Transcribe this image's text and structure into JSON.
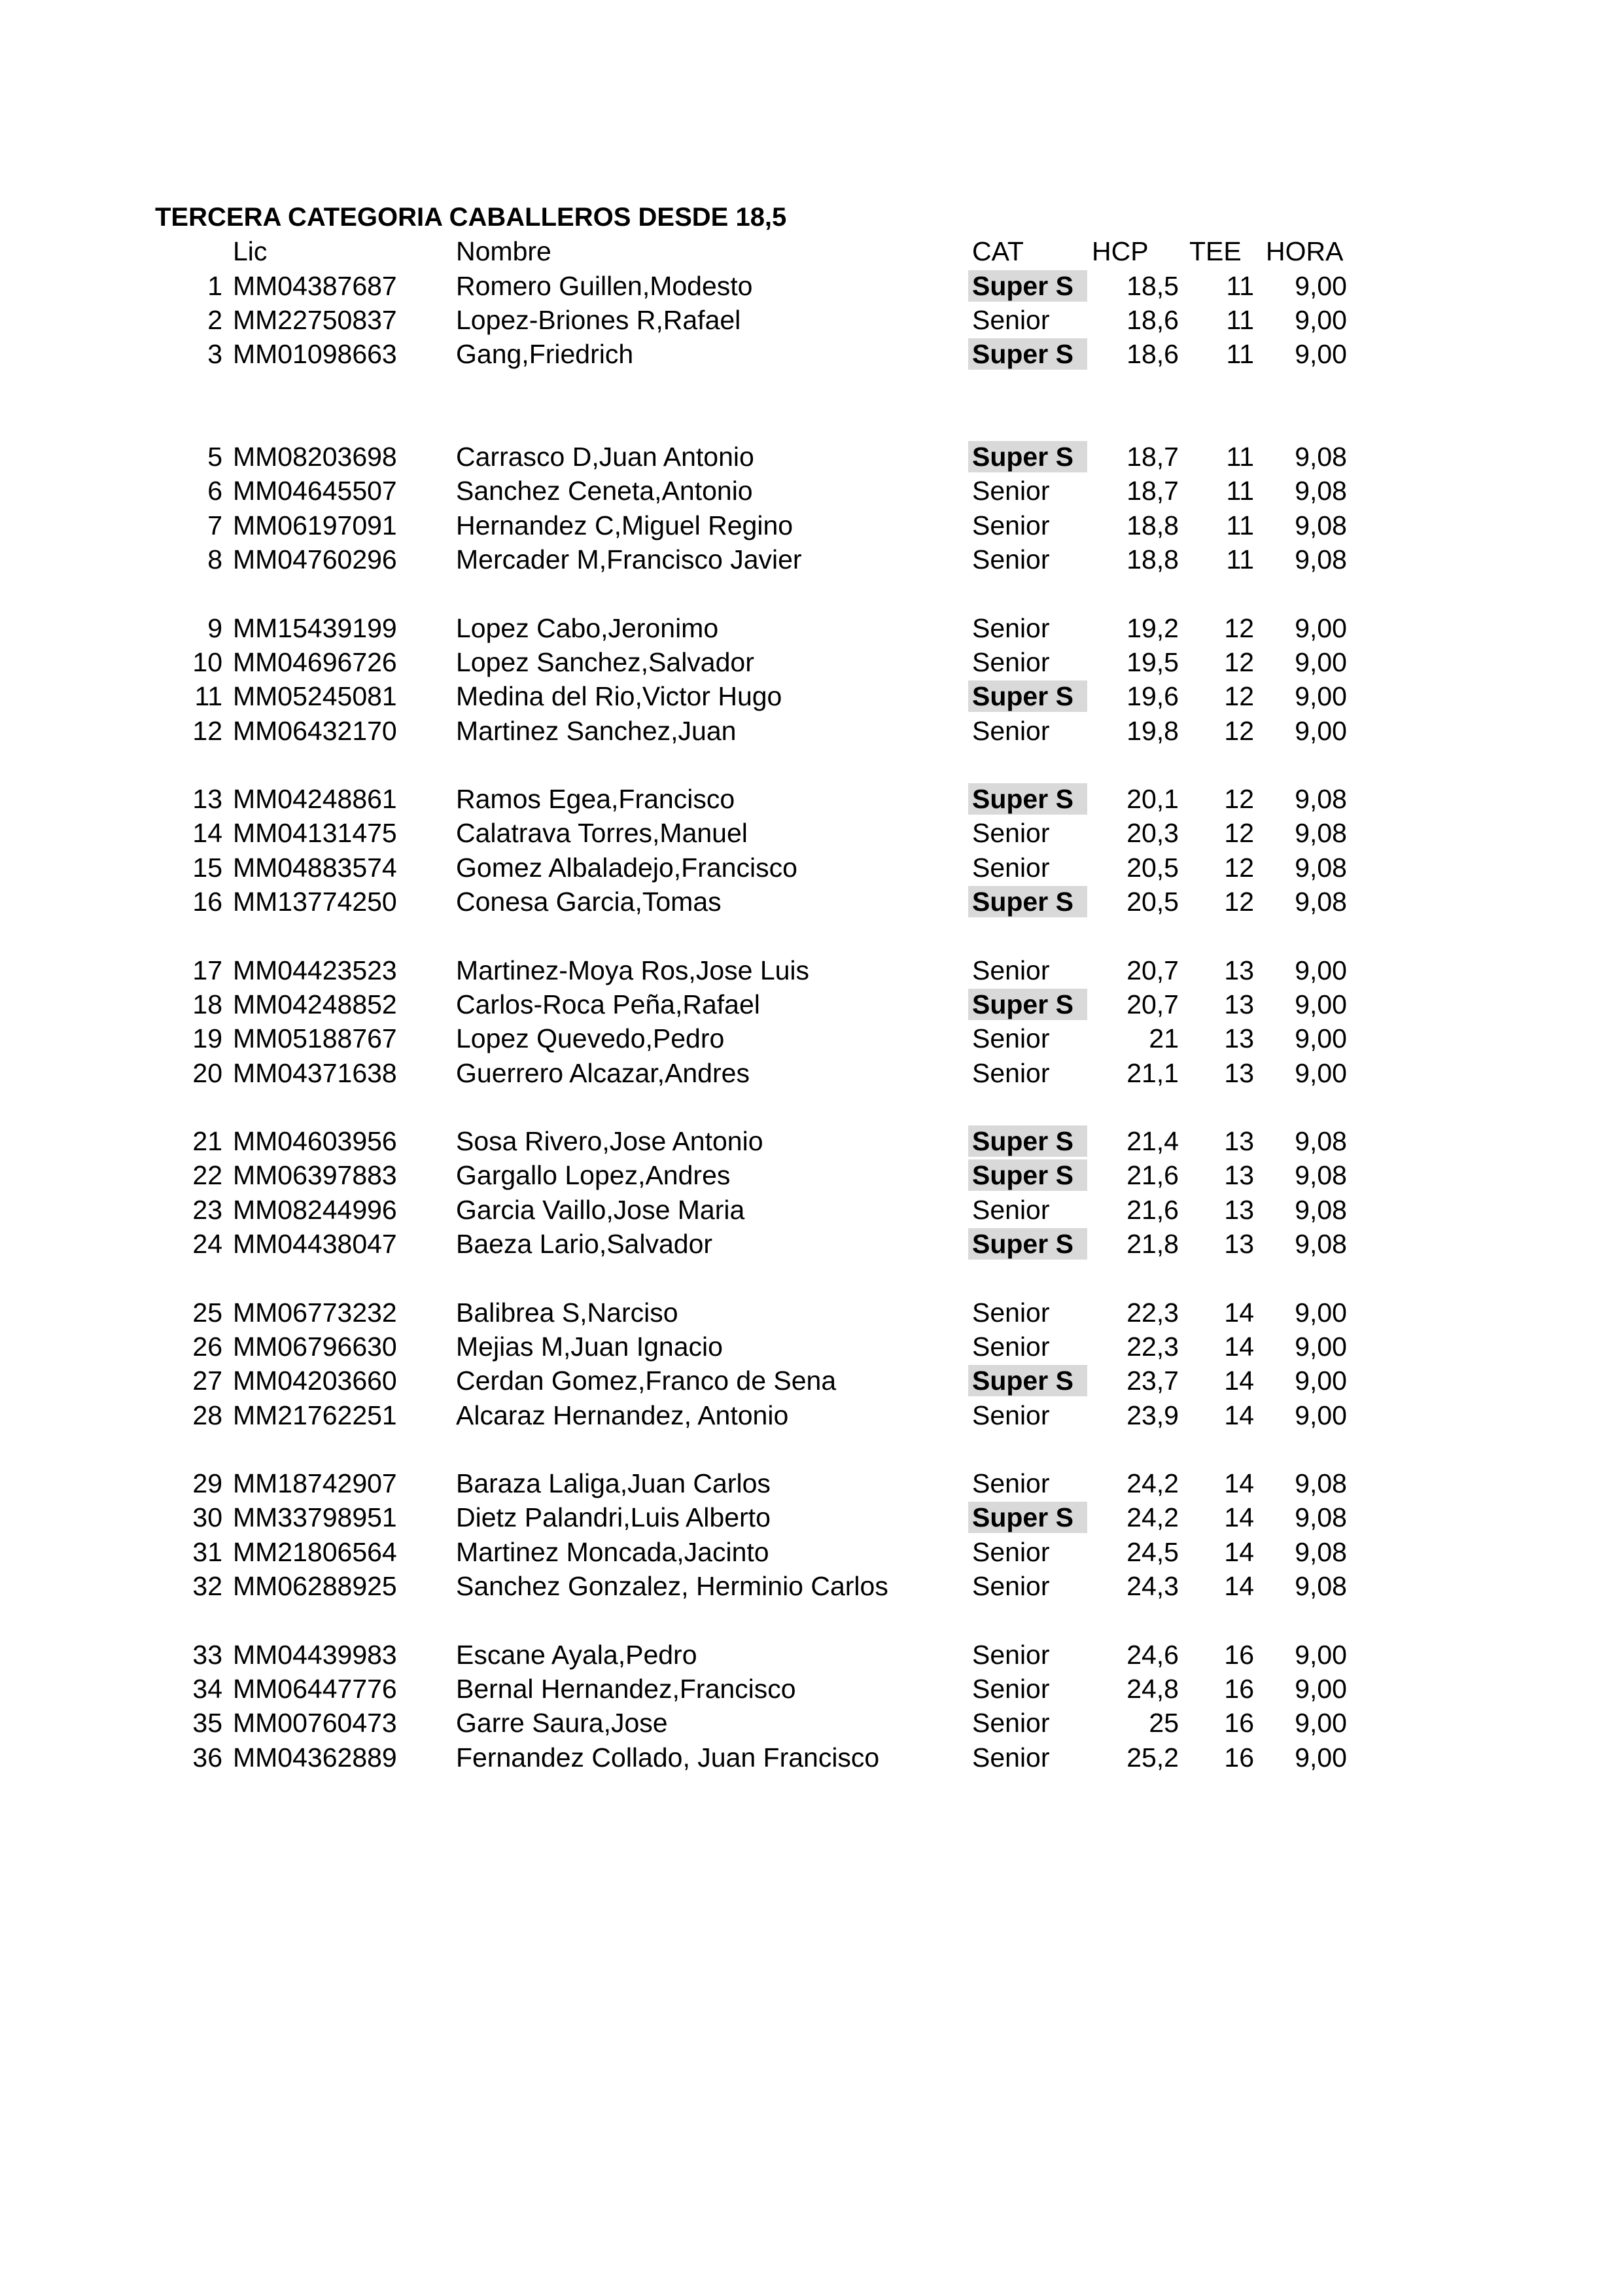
{
  "title": "TERCERA CATEGORIA CABALLEROS DESDE 18,5",
  "headers": {
    "lic": "Lic",
    "nombre": "Nombre",
    "cat": "CAT",
    "hcp": "HCP",
    "tee": "TEE",
    "hora": "HORA"
  },
  "colors": {
    "super_highlight": "#d9d9d9"
  },
  "groups": [
    [
      {
        "n": "1",
        "lic": "MM04387687",
        "nombre": "Romero Guillen,Modesto",
        "cat": "Super S",
        "hcp": "18,5",
        "tee": "11",
        "hora": "9,00"
      },
      {
        "n": "2",
        "lic": "MM22750837",
        "nombre": "Lopez-Briones R,Rafael",
        "cat": "Senior",
        "hcp": "18,6",
        "tee": "11",
        "hora": "9,00"
      },
      {
        "n": "3",
        "lic": "MM01098663",
        "nombre": "Gang,Friedrich",
        "cat": "Super S",
        "hcp": "18,6",
        "tee": "11",
        "hora": "9,00"
      }
    ],
    [
      {
        "n": "5",
        "lic": "MM08203698",
        "nombre": "Carrasco D,Juan Antonio",
        "cat": "Super S",
        "hcp": "18,7",
        "tee": "11",
        "hora": "9,08"
      },
      {
        "n": "6",
        "lic": "MM04645507",
        "nombre": "Sanchez Ceneta,Antonio",
        "cat": "Senior",
        "hcp": "18,7",
        "tee": "11",
        "hora": "9,08"
      },
      {
        "n": "7",
        "lic": "MM06197091",
        "nombre": "Hernandez C,Miguel Regino",
        "cat": "Senior",
        "hcp": "18,8",
        "tee": "11",
        "hora": "9,08"
      },
      {
        "n": "8",
        "lic": "MM04760296",
        "nombre": "Mercader M,Francisco Javier",
        "cat": "Senior",
        "hcp": "18,8",
        "tee": "11",
        "hora": "9,08"
      }
    ],
    [
      {
        "n": "9",
        "lic": "MM15439199",
        "nombre": "Lopez Cabo,Jeronimo",
        "cat": "Senior",
        "hcp": "19,2",
        "tee": "12",
        "hora": "9,00"
      },
      {
        "n": "10",
        "lic": "MM04696726",
        "nombre": "Lopez Sanchez,Salvador",
        "cat": "Senior",
        "hcp": "19,5",
        "tee": "12",
        "hora": "9,00"
      },
      {
        "n": "11",
        "lic": "MM05245081",
        "nombre": "Medina del Rio,Victor Hugo",
        "cat": "Super S",
        "hcp": "19,6",
        "tee": "12",
        "hora": "9,00"
      },
      {
        "n": "12",
        "lic": "MM06432170",
        "nombre": "Martinez Sanchez,Juan",
        "cat": "Senior",
        "hcp": "19,8",
        "tee": "12",
        "hora": "9,00"
      }
    ],
    [
      {
        "n": "13",
        "lic": "MM04248861",
        "nombre": "Ramos Egea,Francisco",
        "cat": "Super S",
        "hcp": "20,1",
        "tee": "12",
        "hora": "9,08"
      },
      {
        "n": "14",
        "lic": "MM04131475",
        "nombre": "Calatrava Torres,Manuel",
        "cat": "Senior",
        "hcp": "20,3",
        "tee": "12",
        "hora": "9,08"
      },
      {
        "n": "15",
        "lic": "MM04883574",
        "nombre": "Gomez Albaladejo,Francisco",
        "cat": "Senior",
        "hcp": "20,5",
        "tee": "12",
        "hora": "9,08"
      },
      {
        "n": "16",
        "lic": "MM13774250",
        "nombre": "Conesa Garcia,Tomas",
        "cat": "Super S",
        "hcp": "20,5",
        "tee": "12",
        "hora": "9,08"
      }
    ],
    [
      {
        "n": "17",
        "lic": "MM04423523",
        "nombre": "Martinez-Moya Ros,Jose Luis",
        "cat": "Senior",
        "hcp": "20,7",
        "tee": "13",
        "hora": "9,00"
      },
      {
        "n": "18",
        "lic": "MM04248852",
        "nombre": "Carlos-Roca Peña,Rafael",
        "cat": "Super S",
        "hcp": "20,7",
        "tee": "13",
        "hora": "9,00"
      },
      {
        "n": "19",
        "lic": "MM05188767",
        "nombre": "Lopez Quevedo,Pedro",
        "cat": "Senior",
        "hcp": "21",
        "tee": "13",
        "hora": "9,00"
      },
      {
        "n": "20",
        "lic": "MM04371638",
        "nombre": "Guerrero Alcazar,Andres",
        "cat": "Senior",
        "hcp": "21,1",
        "tee": "13",
        "hora": "9,00"
      }
    ],
    [
      {
        "n": "21",
        "lic": "MM04603956",
        "nombre": "Sosa Rivero,Jose Antonio",
        "cat": "Super S",
        "hcp": "21,4",
        "tee": "13",
        "hora": "9,08"
      },
      {
        "n": "22",
        "lic": "MM06397883",
        "nombre": "Gargallo Lopez,Andres",
        "cat": "Super S",
        "hcp": "21,6",
        "tee": "13",
        "hora": "9,08"
      },
      {
        "n": "23",
        "lic": "MM08244996",
        "nombre": "Garcia Vaillo,Jose Maria",
        "cat": "Senior",
        "hcp": "21,6",
        "tee": "13",
        "hora": "9,08"
      },
      {
        "n": "24",
        "lic": "MM04438047",
        "nombre": "Baeza Lario,Salvador",
        "cat": "Super S",
        "hcp": "21,8",
        "tee": "13",
        "hora": "9,08"
      }
    ],
    [
      {
        "n": "25",
        "lic": "MM06773232",
        "nombre": "Balibrea S,Narciso",
        "cat": "Senior",
        "hcp": "22,3",
        "tee": "14",
        "hora": "9,00"
      },
      {
        "n": "26",
        "lic": "MM06796630",
        "nombre": "Mejias M,Juan Ignacio",
        "cat": "Senior",
        "hcp": "22,3",
        "tee": "14",
        "hora": "9,00"
      },
      {
        "n": "27",
        "lic": "MM04203660",
        "nombre": "Cerdan Gomez,Franco de Sena",
        "cat": "Super S",
        "hcp": "23,7",
        "tee": "14",
        "hora": "9,00"
      },
      {
        "n": "28",
        "lic": "MM21762251",
        "nombre": "Alcaraz Hernandez, Antonio",
        "cat": "Senior",
        "hcp": "23,9",
        "tee": "14",
        "hora": "9,00"
      }
    ],
    [
      {
        "n": "29",
        "lic": "MM18742907",
        "nombre": "Baraza Laliga,Juan Carlos",
        "cat": "Senior",
        "hcp": "24,2",
        "tee": "14",
        "hora": "9,08"
      },
      {
        "n": "30",
        "lic": "MM33798951",
        "nombre": "Dietz Palandri,Luis Alberto",
        "cat": "Super S",
        "hcp": "24,2",
        "tee": "14",
        "hora": "9,08"
      },
      {
        "n": "31",
        "lic": "MM21806564",
        "nombre": "Martinez Moncada,Jacinto",
        "cat": "Senior",
        "hcp": "24,5",
        "tee": "14",
        "hora": "9,08"
      },
      {
        "n": "32",
        "lic": "MM06288925",
        "nombre": "Sanchez Gonzalez, Herminio Carlos",
        "cat": "Senior",
        "hcp": "24,3",
        "tee": "14",
        "hora": "9,08"
      }
    ],
    [
      {
        "n": "33",
        "lic": "MM04439983",
        "nombre": "Escane Ayala,Pedro",
        "cat": "Senior",
        "hcp": "24,6",
        "tee": "16",
        "hora": "9,00"
      },
      {
        "n": "34",
        "lic": "MM06447776",
        "nombre": "Bernal Hernandez,Francisco",
        "cat": "Senior",
        "hcp": "24,8",
        "tee": "16",
        "hora": "9,00"
      },
      {
        "n": "35",
        "lic": "MM00760473",
        "nombre": "Garre Saura,Jose",
        "cat": "Senior",
        "hcp": "25",
        "tee": "16",
        "hora": "9,00"
      },
      {
        "n": "36",
        "lic": "MM04362889",
        "nombre": "Fernandez Collado, Juan Francisco",
        "cat": "Senior",
        "hcp": "25,2",
        "tee": "16",
        "hora": "9,00"
      }
    ]
  ]
}
